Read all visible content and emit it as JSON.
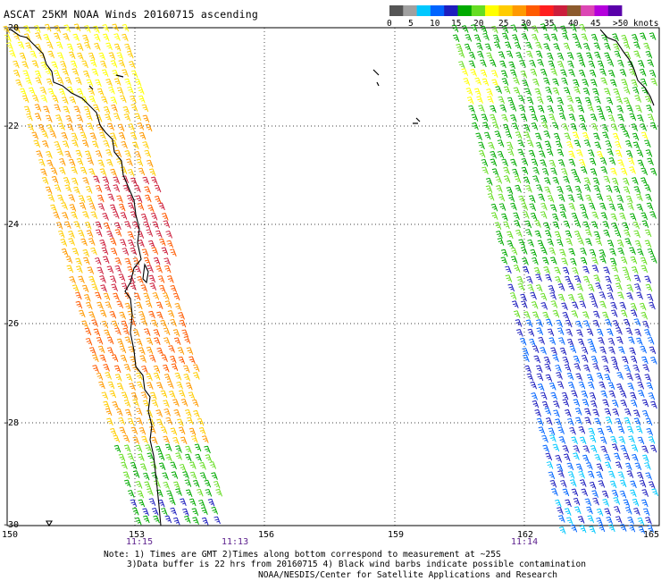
{
  "title": "ASCAT 25KM NOAA Winds 20160715 ascending",
  "legend": {
    "colors": [
      "#555555",
      "#a0a0a0",
      "#00c8ff",
      "#0064ff",
      "#1e1ebe",
      "#00aa00",
      "#66dd22",
      "#ffff00",
      "#ffcc00",
      "#ff9900",
      "#ff5a00",
      "#ff1e1e",
      "#cc1e3c",
      "#8c5a2d",
      "#dc46b4",
      "#b400dc",
      "#5a00aa"
    ],
    "labels": [
      "0",
      "5",
      "10",
      "15",
      "20",
      "25",
      "30",
      "35",
      "40",
      "45",
      ">50 knots"
    ]
  },
  "axes": {
    "lon_labels": [
      "150",
      "153",
      "156",
      "159",
      "162",
      "165"
    ],
    "lat_labels": [
      "-20",
      "-22",
      "-24",
      "-26",
      "-28",
      "-30"
    ]
  },
  "times": [
    "11:15",
    "11:13",
    "11:14"
  ],
  "notes": [
    "Note: 1) Times are GMT 2)Times along bottom correspond to measurement at ~25S",
    "3)Data buffer is 22 hrs from 20160715 4) Black wind barbs indicate possible contamination",
    "NOAA/NESDIS/Center for Satellite Applications and Research"
  ]
}
